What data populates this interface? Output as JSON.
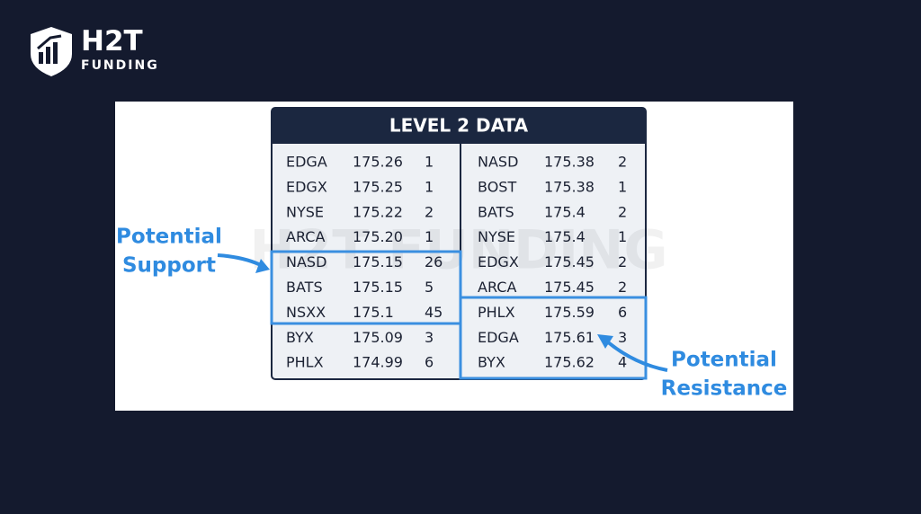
{
  "logo": {
    "name": "H2T",
    "tagline": "FUNDING"
  },
  "watermark": "H2T FUNDING",
  "table": {
    "title": "LEVEL 2 DATA",
    "bids": [
      [
        "EDGA",
        "175.26",
        "1"
      ],
      [
        "EDGX",
        "175.25",
        "1"
      ],
      [
        "NYSE",
        "175.22",
        "2"
      ],
      [
        "ARCA",
        "175.20",
        "1"
      ],
      [
        "NASD",
        "175.15",
        "26"
      ],
      [
        "BATS",
        "175.15",
        "5"
      ],
      [
        "NSXX",
        "175.1",
        "45"
      ],
      [
        "BYX",
        "175.09",
        "3"
      ],
      [
        "PHLX",
        "174.99",
        "6"
      ]
    ],
    "asks": [
      [
        "NASD",
        "175.38",
        "2"
      ],
      [
        "BOST",
        "175.38",
        "1"
      ],
      [
        "BATS",
        "175.4",
        "2"
      ],
      [
        "NYSE",
        "175.4",
        "1"
      ],
      [
        "EDGX",
        "175.45",
        "2"
      ],
      [
        "ARCA",
        "175.45",
        "2"
      ],
      [
        "PHLX",
        "175.59",
        "6"
      ],
      [
        "EDGA",
        "175.61",
        "3"
      ],
      [
        "BYX",
        "175.62",
        "4"
      ]
    ]
  },
  "annotations": {
    "support": [
      "Potential",
      "Support"
    ],
    "resistance": [
      "Potential",
      "Resistance"
    ]
  }
}
